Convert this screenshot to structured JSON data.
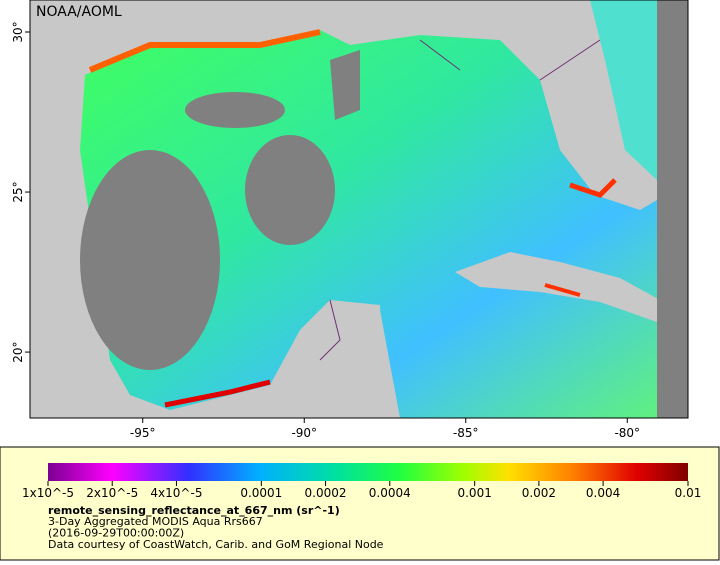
{
  "header": {
    "credit": "NOAA/AOML"
  },
  "map": {
    "lonlim": [
      -98.49,
      -78.12
    ],
    "latlim": [
      17.94,
      31
    ],
    "lonticks": [
      {
        "value": -95,
        "label": "-95°"
      },
      {
        "value": -90,
        "label": "-90°"
      },
      {
        "value": -85,
        "label": "-85°"
      },
      {
        "value": -80,
        "label": "-80°"
      }
    ],
    "latticks": [
      {
        "value": 20,
        "label": "20°"
      },
      {
        "value": 25,
        "label": "25°"
      },
      {
        "value": 30,
        "label": "30°"
      }
    ]
  },
  "colorbar": {
    "scale": "log",
    "lim": [
      1e-05,
      0.01
    ],
    "ticks": [
      {
        "value": 1e-05,
        "label": "1x10^-5"
      },
      {
        "value": 2e-05,
        "label": "2x10^-5"
      },
      {
        "value": 4e-05,
        "label": "4x10^-5"
      },
      0.0001,
      0.0002,
      0.0004,
      0.001,
      0.002,
      0.004,
      0.01
    ]
  },
  "caption": {
    "variable": "remote_sensing_reflectance_at_667_nm (sr^-1)",
    "lines": [
      "3-Day Aggregated MODIS Aqua Rrs667",
      "(2016-09-29T00:00:00Z)",
      "Data courtesy of CoastWatch, Carib. and GoM Regional Node"
    ]
  }
}
